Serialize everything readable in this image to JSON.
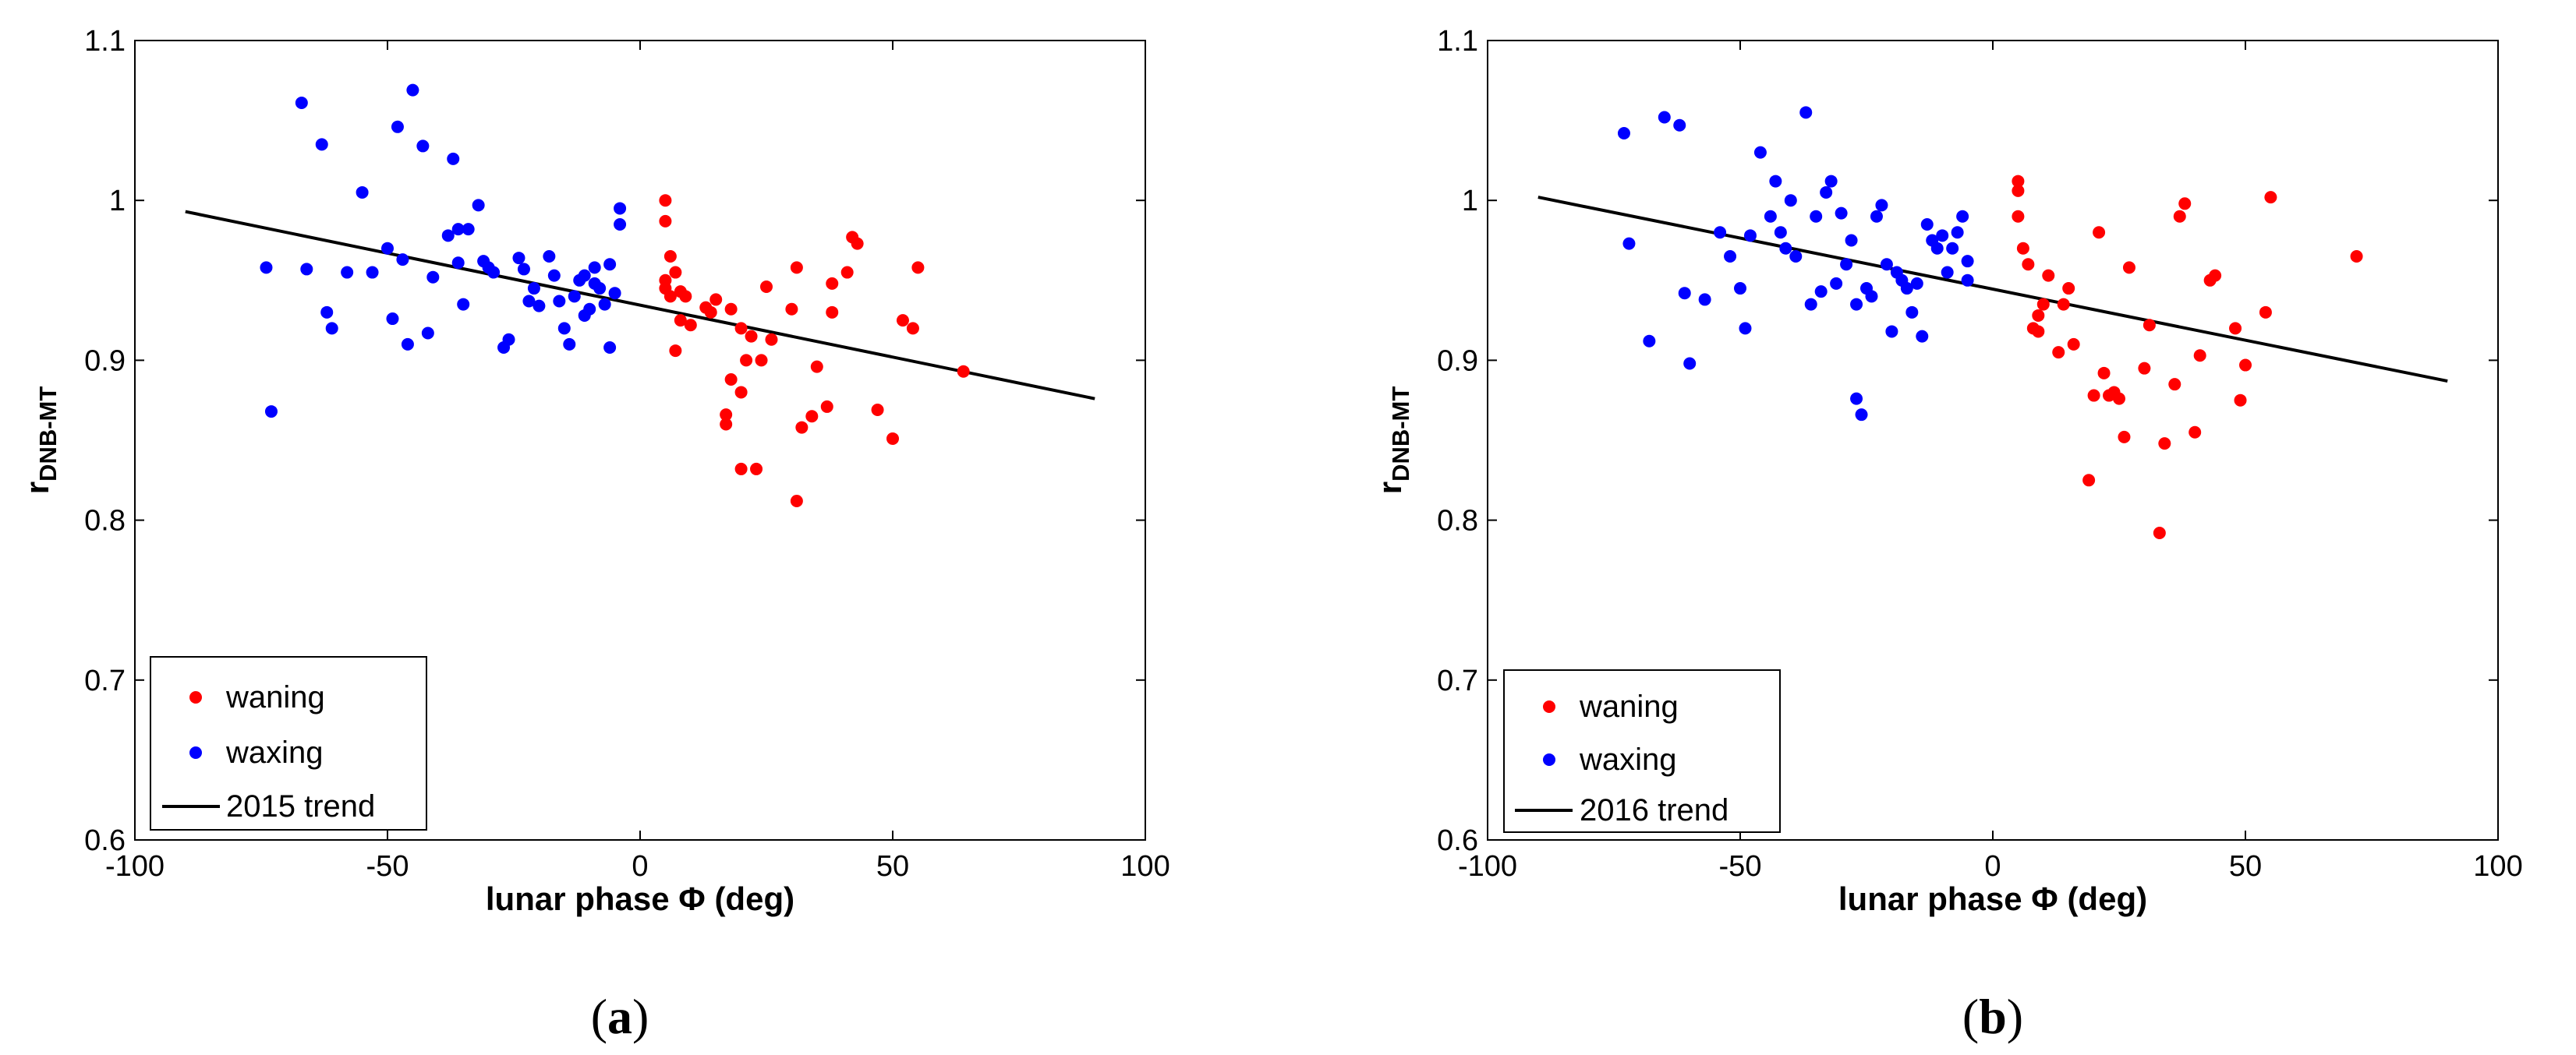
{
  "chart_data": [
    {
      "type": "scatter",
      "panel_label": "a",
      "xlabel": "lunar phase Φ (deg)",
      "ylabel_main": "r",
      "ylabel_sub": "DNB-MT",
      "xlim": [
        -100,
        100
      ],
      "ylim": [
        0.6,
        1.1
      ],
      "xticks": [
        -100,
        -50,
        0,
        50,
        100
      ],
      "yticks": [
        0.6,
        0.7,
        0.8,
        0.9,
        1,
        1.1
      ],
      "ytick_labels": [
        "0.6",
        "0.7",
        "0.8",
        "0.9",
        "1",
        "1.1"
      ],
      "legend_position": "bottom-left",
      "trend": {
        "name": "2015 trend",
        "x": [
          -90,
          90
        ],
        "y": [
          0.993,
          0.876
        ]
      },
      "series": [
        {
          "name": "waning",
          "color": "#ff0000",
          "points": [
            [
              5,
              1.0
            ],
            [
              5,
              0.987
            ],
            [
              6,
              0.965
            ],
            [
              5,
              0.95
            ],
            [
              5,
              0.945
            ],
            [
              7,
              0.955
            ],
            [
              8,
              0.943
            ],
            [
              9,
              0.94
            ],
            [
              6,
              0.94
            ],
            [
              8,
              0.925
            ],
            [
              7,
              0.906
            ],
            [
              10,
              0.922
            ],
            [
              13,
              0.933
            ],
            [
              14,
              0.93
            ],
            [
              15,
              0.938
            ],
            [
              18,
              0.932
            ],
            [
              20,
              0.92
            ],
            [
              22,
              0.915
            ],
            [
              24,
              0.9
            ],
            [
              21,
              0.9
            ],
            [
              26,
              0.913
            ],
            [
              18,
              0.888
            ],
            [
              20,
              0.88
            ],
            [
              17,
              0.866
            ],
            [
              17,
              0.86
            ],
            [
              20,
              0.832
            ],
            [
              23,
              0.832
            ],
            [
              25,
              0.946
            ],
            [
              30,
              0.932
            ],
            [
              31,
              0.958
            ],
            [
              32,
              0.858
            ],
            [
              34,
              0.865
            ],
            [
              35,
              0.896
            ],
            [
              37,
              0.871
            ],
            [
              38,
              0.93
            ],
            [
              38,
              0.948
            ],
            [
              41,
              0.955
            ],
            [
              42,
              0.977
            ],
            [
              43,
              0.973
            ],
            [
              47,
              0.869
            ],
            [
              50,
              0.851
            ],
            [
              52,
              0.925
            ],
            [
              54,
              0.92
            ],
            [
              55,
              0.958
            ],
            [
              64,
              0.893
            ],
            [
              31,
              0.812
            ]
          ]
        },
        {
          "name": "waxing",
          "color": "#0000ff",
          "points": [
            [
              -74,
              0.958
            ],
            [
              -73,
              0.868
            ],
            [
              -67,
              1.061
            ],
            [
              -66,
              0.957
            ],
            [
              -63,
              1.035
            ],
            [
              -62,
              0.93
            ],
            [
              -61,
              0.92
            ],
            [
              -58,
              0.955
            ],
            [
              -55,
              1.005
            ],
            [
              -53,
              0.955
            ],
            [
              -50,
              0.97
            ],
            [
              -49,
              0.926
            ],
            [
              -48,
              1.046
            ],
            [
              -47,
              0.963
            ],
            [
              -46,
              0.91
            ],
            [
              -45,
              1.069
            ],
            [
              -43,
              1.034
            ],
            [
              -42,
              0.917
            ],
            [
              -41,
              0.952
            ],
            [
              -38,
              0.978
            ],
            [
              -37,
              1.026
            ],
            [
              -36,
              0.961
            ],
            [
              -36,
              0.982
            ],
            [
              -35,
              0.935
            ],
            [
              -34,
              0.982
            ],
            [
              -32,
              0.997
            ],
            [
              -31,
              0.962
            ],
            [
              -30,
              0.958
            ],
            [
              -29,
              0.955
            ],
            [
              -27,
              0.908
            ],
            [
              -26,
              0.913
            ],
            [
              -24,
              0.964
            ],
            [
              -23,
              0.957
            ],
            [
              -22,
              0.937
            ],
            [
              -21,
              0.945
            ],
            [
              -20,
              0.934
            ],
            [
              -18,
              0.965
            ],
            [
              -17,
              0.953
            ],
            [
              -16,
              0.937
            ],
            [
              -15,
              0.92
            ],
            [
              -14,
              0.91
            ],
            [
              -12,
              0.95
            ],
            [
              -11,
              0.953
            ],
            [
              -10,
              0.932
            ],
            [
              -9,
              0.958
            ],
            [
              -9,
              0.948
            ],
            [
              -8,
              0.945
            ],
            [
              -7,
              0.935
            ],
            [
              -6,
              0.96
            ],
            [
              -5,
              0.942
            ],
            [
              -4,
              0.995
            ],
            [
              -4,
              0.985
            ],
            [
              -6,
              0.908
            ],
            [
              -13,
              0.94
            ],
            [
              -11,
              0.928
            ]
          ]
        }
      ]
    },
    {
      "type": "scatter",
      "panel_label": "b",
      "xlabel": "lunar phase Φ (deg)",
      "ylabel_main": "r",
      "ylabel_sub": "DNB-MT",
      "xlim": [
        -100,
        100
      ],
      "ylim": [
        0.6,
        1.1
      ],
      "xticks": [
        -100,
        -50,
        0,
        50,
        100
      ],
      "yticks": [
        0.6,
        0.7,
        0.8,
        0.9,
        1,
        1.1
      ],
      "ytick_labels": [
        "0.6",
        "0.7",
        "0.8",
        "0.9",
        "1",
        "1.1"
      ],
      "legend_position": "bottom-left",
      "trend": {
        "name": "2016 trend",
        "x": [
          -90,
          90
        ],
        "y": [
          1.002,
          0.887
        ]
      },
      "series": [
        {
          "name": "waning",
          "color": "#ff0000",
          "points": [
            [
              5,
              1.012
            ],
            [
              5,
              1.006
            ],
            [
              5,
              0.99
            ],
            [
              6,
              0.97
            ],
            [
              7,
              0.96
            ],
            [
              8,
              0.92
            ],
            [
              9,
              0.918
            ],
            [
              9,
              0.928
            ],
            [
              10,
              0.935
            ],
            [
              11,
              0.953
            ],
            [
              13,
              0.905
            ],
            [
              14,
              0.935
            ],
            [
              15,
              0.945
            ],
            [
              16,
              0.91
            ],
            [
              19,
              0.825
            ],
            [
              20,
              0.878
            ],
            [
              21,
              0.98
            ],
            [
              22,
              0.892
            ],
            [
              23,
              0.878
            ],
            [
              24,
              0.88
            ],
            [
              25,
              0.876
            ],
            [
              26,
              0.852
            ],
            [
              27,
              0.958
            ],
            [
              30,
              0.895
            ],
            [
              31,
              0.922
            ],
            [
              33,
              0.792
            ],
            [
              34,
              0.848
            ],
            [
              36,
              0.885
            ],
            [
              37,
              0.99
            ],
            [
              38,
              0.998
            ],
            [
              40,
              0.855
            ],
            [
              41,
              0.903
            ],
            [
              43,
              0.95
            ],
            [
              44,
              0.953
            ],
            [
              48,
              0.92
            ],
            [
              49,
              0.875
            ],
            [
              50,
              0.897
            ],
            [
              54,
              0.93
            ],
            [
              55,
              1.002
            ],
            [
              72,
              0.965
            ]
          ]
        },
        {
          "name": "waxing",
          "color": "#0000ff",
          "points": [
            [
              -73,
              1.042
            ],
            [
              -72,
              0.973
            ],
            [
              -68,
              0.912
            ],
            [
              -65,
              1.052
            ],
            [
              -62,
              1.047
            ],
            [
              -61,
              0.942
            ],
            [
              -60,
              0.898
            ],
            [
              -57,
              0.938
            ],
            [
              -54,
              0.98
            ],
            [
              -52,
              0.965
            ],
            [
              -50,
              0.945
            ],
            [
              -49,
              0.92
            ],
            [
              -48,
              0.978
            ],
            [
              -46,
              1.03
            ],
            [
              -44,
              0.99
            ],
            [
              -43,
              1.012
            ],
            [
              -42,
              0.98
            ],
            [
              -41,
              0.97
            ],
            [
              -40,
              1.0
            ],
            [
              -39,
              0.965
            ],
            [
              -37,
              1.055
            ],
            [
              -36,
              0.935
            ],
            [
              -35,
              0.99
            ],
            [
              -34,
              0.943
            ],
            [
              -33,
              1.005
            ],
            [
              -32,
              1.012
            ],
            [
              -31,
              0.948
            ],
            [
              -30,
              0.992
            ],
            [
              -29,
              0.96
            ],
            [
              -28,
              0.975
            ],
            [
              -27,
              0.935
            ],
            [
              -27,
              0.876
            ],
            [
              -26,
              0.866
            ],
            [
              -25,
              0.945
            ],
            [
              -24,
              0.94
            ],
            [
              -23,
              0.99
            ],
            [
              -22,
              0.997
            ],
            [
              -21,
              0.96
            ],
            [
              -20,
              0.918
            ],
            [
              -19,
              0.955
            ],
            [
              -18,
              0.95
            ],
            [
              -17,
              0.945
            ],
            [
              -16,
              0.93
            ],
            [
              -15,
              0.948
            ],
            [
              -14,
              0.915
            ],
            [
              -13,
              0.985
            ],
            [
              -12,
              0.975
            ],
            [
              -11,
              0.97
            ],
            [
              -10,
              0.978
            ],
            [
              -9,
              0.955
            ],
            [
              -8,
              0.97
            ],
            [
              -7,
              0.98
            ],
            [
              -6,
              0.99
            ],
            [
              -5,
              0.962
            ],
            [
              -5,
              0.95
            ]
          ]
        }
      ]
    }
  ]
}
